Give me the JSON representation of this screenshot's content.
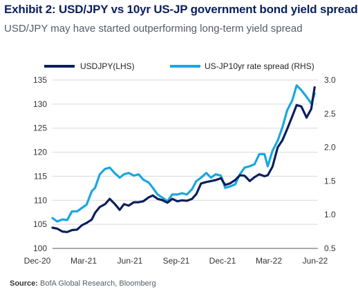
{
  "title": "Exhibit 2: USD/JPY vs 10yr US-JP government bond yield spread",
  "subtitle": "USD/JPY may have started outperforming long-term yield spread",
  "source_label": "Source:",
  "source_text": " BofA Global Research, Bloomberg",
  "chart_data": {
    "type": "line",
    "x_tick_labels": [
      "Dec-20",
      "Mar-21",
      "Jun-21",
      "Sep-21",
      "Dec-21",
      "Mar-22",
      "Jun-22"
    ],
    "x_range": [
      "2020-12-01",
      "2022-06-15"
    ],
    "grid": "horizontal",
    "legend_position": "top",
    "left_axis": {
      "ticks": [
        100,
        105,
        110,
        115,
        120,
        125,
        130,
        135
      ],
      "range": [
        100,
        135
      ]
    },
    "right_axis": {
      "ticks": [
        0.5,
        1.0,
        1.5,
        2.0,
        2.5,
        3.0
      ],
      "range": [
        0.5,
        3.0
      ]
    },
    "series": [
      {
        "name": "USDJPY(LHS)",
        "axis": "left",
        "color": "#0a1f5c",
        "points": [
          [
            "2020-12-01",
            104.3
          ],
          [
            "2020-12-11",
            104.1
          ],
          [
            "2020-12-22",
            103.5
          ],
          [
            "2021-01-01",
            103.4
          ],
          [
            "2021-01-11",
            103.8
          ],
          [
            "2021-01-22",
            103.9
          ],
          [
            "2021-02-01",
            104.8
          ],
          [
            "2021-02-11",
            105.3
          ],
          [
            "2021-02-22",
            106.0
          ],
          [
            "2021-03-01",
            107.4
          ],
          [
            "2021-03-11",
            108.6
          ],
          [
            "2021-03-22",
            109.2
          ],
          [
            "2021-04-01",
            110.3
          ],
          [
            "2021-04-11",
            109.3
          ],
          [
            "2021-04-22",
            108.0
          ],
          [
            "2021-05-01",
            109.2
          ],
          [
            "2021-05-11",
            108.9
          ],
          [
            "2021-05-22",
            109.6
          ],
          [
            "2021-06-01",
            109.6
          ],
          [
            "2021-06-11",
            109.8
          ],
          [
            "2021-06-22",
            110.6
          ],
          [
            "2021-07-01",
            111.0
          ],
          [
            "2021-07-11",
            110.3
          ],
          [
            "2021-07-22",
            110.0
          ],
          [
            "2021-08-01",
            109.5
          ],
          [
            "2021-08-11",
            110.3
          ],
          [
            "2021-08-22",
            109.8
          ],
          [
            "2021-09-01",
            110.0
          ],
          [
            "2021-09-11",
            109.9
          ],
          [
            "2021-09-22",
            110.3
          ],
          [
            "2021-10-01",
            111.3
          ],
          [
            "2021-10-11",
            113.5
          ],
          [
            "2021-10-22",
            113.8
          ],
          [
            "2021-11-01",
            114.0
          ],
          [
            "2021-11-11",
            114.2
          ],
          [
            "2021-11-22",
            114.6
          ],
          [
            "2021-12-01",
            113.2
          ],
          [
            "2021-12-11",
            113.5
          ],
          [
            "2021-12-22",
            114.2
          ],
          [
            "2022-01-01",
            115.2
          ],
          [
            "2022-01-11",
            115.1
          ],
          [
            "2022-01-22",
            114.0
          ],
          [
            "2022-02-01",
            114.8
          ],
          [
            "2022-02-11",
            115.4
          ],
          [
            "2022-02-22",
            115.0
          ],
          [
            "2022-03-01",
            115.2
          ],
          [
            "2022-03-11",
            117.0
          ],
          [
            "2022-03-22",
            121.0
          ],
          [
            "2022-04-01",
            122.5
          ],
          [
            "2022-04-11",
            124.8
          ],
          [
            "2022-04-22",
            127.5
          ],
          [
            "2022-05-01",
            129.8
          ],
          [
            "2022-05-11",
            129.5
          ],
          [
            "2022-05-22",
            127.2
          ],
          [
            "2022-06-01",
            129.0
          ],
          [
            "2022-06-08",
            133.5
          ]
        ]
      },
      {
        "name": "US-JP10yr rate spread (RHS)",
        "axis": "right",
        "color": "#1aa6df",
        "points": [
          [
            "2020-12-01",
            0.95
          ],
          [
            "2020-12-11",
            0.9
          ],
          [
            "2020-12-22",
            0.93
          ],
          [
            "2021-01-01",
            0.92
          ],
          [
            "2021-01-11",
            1.05
          ],
          [
            "2021-01-22",
            1.05
          ],
          [
            "2021-02-01",
            1.1
          ],
          [
            "2021-02-11",
            1.15
          ],
          [
            "2021-02-22",
            1.35
          ],
          [
            "2021-03-01",
            1.4
          ],
          [
            "2021-03-11",
            1.6
          ],
          [
            "2021-03-22",
            1.68
          ],
          [
            "2021-04-01",
            1.7
          ],
          [
            "2021-04-11",
            1.62
          ],
          [
            "2021-04-22",
            1.55
          ],
          [
            "2021-05-01",
            1.6
          ],
          [
            "2021-05-11",
            1.62
          ],
          [
            "2021-05-22",
            1.58
          ],
          [
            "2021-06-01",
            1.6
          ],
          [
            "2021-06-11",
            1.52
          ],
          [
            "2021-06-22",
            1.48
          ],
          [
            "2021-07-01",
            1.4
          ],
          [
            "2021-07-11",
            1.3
          ],
          [
            "2021-07-22",
            1.25
          ],
          [
            "2021-08-01",
            1.2
          ],
          [
            "2021-08-11",
            1.3
          ],
          [
            "2021-08-22",
            1.3
          ],
          [
            "2021-09-01",
            1.32
          ],
          [
            "2021-09-11",
            1.3
          ],
          [
            "2021-09-22",
            1.38
          ],
          [
            "2021-10-01",
            1.5
          ],
          [
            "2021-10-11",
            1.55
          ],
          [
            "2021-10-22",
            1.62
          ],
          [
            "2021-11-01",
            1.55
          ],
          [
            "2021-11-11",
            1.6
          ],
          [
            "2021-11-22",
            1.58
          ],
          [
            "2021-12-01",
            1.4
          ],
          [
            "2021-12-11",
            1.42
          ],
          [
            "2021-12-22",
            1.45
          ],
          [
            "2022-01-01",
            1.6
          ],
          [
            "2022-01-11",
            1.7
          ],
          [
            "2022-01-22",
            1.72
          ],
          [
            "2022-02-01",
            1.75
          ],
          [
            "2022-02-11",
            1.9
          ],
          [
            "2022-02-22",
            1.9
          ],
          [
            "2022-03-01",
            1.72
          ],
          [
            "2022-03-11",
            1.95
          ],
          [
            "2022-03-22",
            2.1
          ],
          [
            "2022-04-01",
            2.3
          ],
          [
            "2022-04-11",
            2.55
          ],
          [
            "2022-04-22",
            2.7
          ],
          [
            "2022-05-01",
            2.92
          ],
          [
            "2022-05-11",
            2.85
          ],
          [
            "2022-05-22",
            2.75
          ],
          [
            "2022-06-01",
            2.65
          ],
          [
            "2022-06-08",
            2.8
          ]
        ]
      }
    ]
  }
}
